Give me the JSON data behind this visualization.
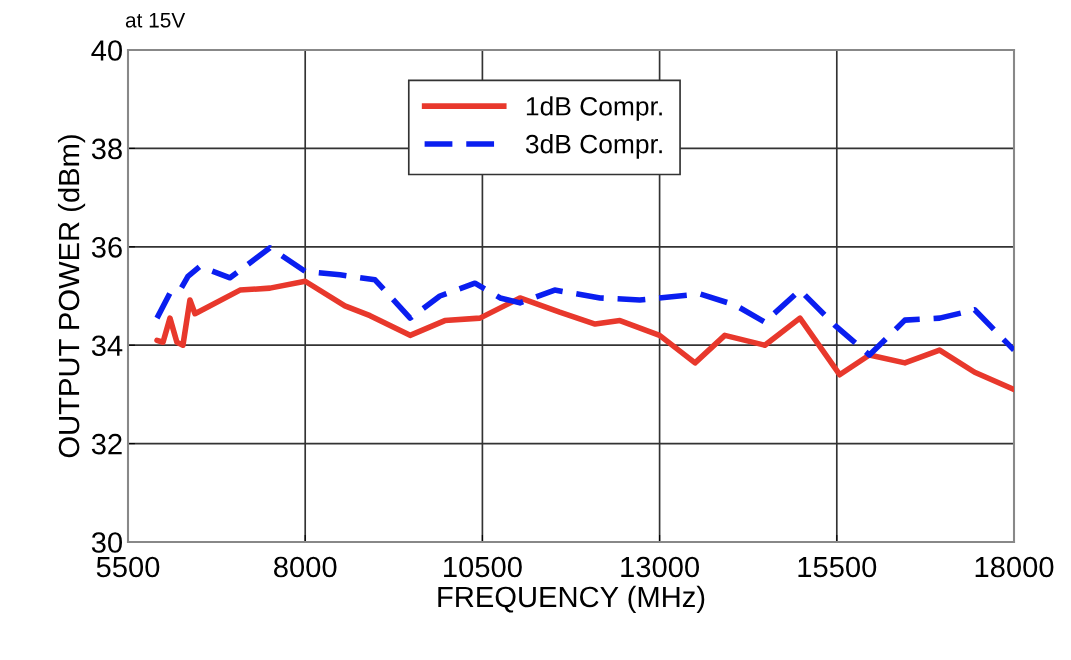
{
  "chart_data": {
    "type": "line",
    "xlabel": "FREQUENCY (MHz)",
    "ylabel": "OUTPUT POWER (dBm)",
    "annotations": [
      "at 15V"
    ],
    "xlim": [
      5500,
      18000
    ],
    "xticks": [
      5500,
      8000,
      10500,
      13000,
      15500,
      18000
    ],
    "ylim": [
      30,
      40
    ],
    "yticks": [
      30,
      32,
      34,
      36,
      38,
      40
    ],
    "grid": true,
    "legend": "top",
    "marker": "none",
    "series": [
      {
        "name": "1dB Compr.",
        "color": "#e8382c",
        "line_style": "solid",
        "x": [
          5909,
          5994,
          6092,
          6190,
          6275,
          6374,
          6445,
          7080,
          7503,
          8000,
          8560,
          8915,
          9480,
          9970,
          10465,
          11030,
          11590,
          12090,
          12440,
          13000,
          13500,
          13920,
          14485,
          14980,
          15540,
          15960,
          16460,
          16950,
          17445,
          18000
        ],
        "values": [
          34.1,
          34.06,
          34.55,
          34.06,
          34.0,
          34.92,
          34.64,
          35.12,
          35.16,
          35.3,
          34.8,
          34.6,
          34.2,
          34.5,
          34.55,
          34.96,
          34.67,
          34.43,
          34.5,
          34.2,
          33.64,
          34.2,
          34.0,
          34.55,
          33.4,
          33.8,
          33.64,
          33.9,
          33.45,
          33.1
        ]
      },
      {
        "name": "3dB Compr.",
        "color": "#0a1ef0",
        "line_style": "dashed",
        "x": [
          5909,
          6092,
          6235,
          6346,
          6515,
          6939,
          7503,
          8000,
          8490,
          8985,
          9480,
          9900,
          10395,
          10750,
          11030,
          11520,
          12160,
          12720,
          13570,
          14060,
          14485,
          14980,
          15470,
          15960,
          16460,
          16950,
          17445,
          18000
        ],
        "values": [
          34.55,
          35.06,
          35.12,
          35.4,
          35.6,
          35.37,
          35.98,
          35.5,
          35.43,
          35.33,
          34.55,
          35.0,
          35.26,
          34.96,
          34.86,
          35.12,
          34.96,
          34.92,
          35.04,
          34.82,
          34.47,
          35.12,
          34.41,
          33.8,
          34.51,
          34.55,
          34.72,
          33.9
        ]
      }
    ]
  }
}
